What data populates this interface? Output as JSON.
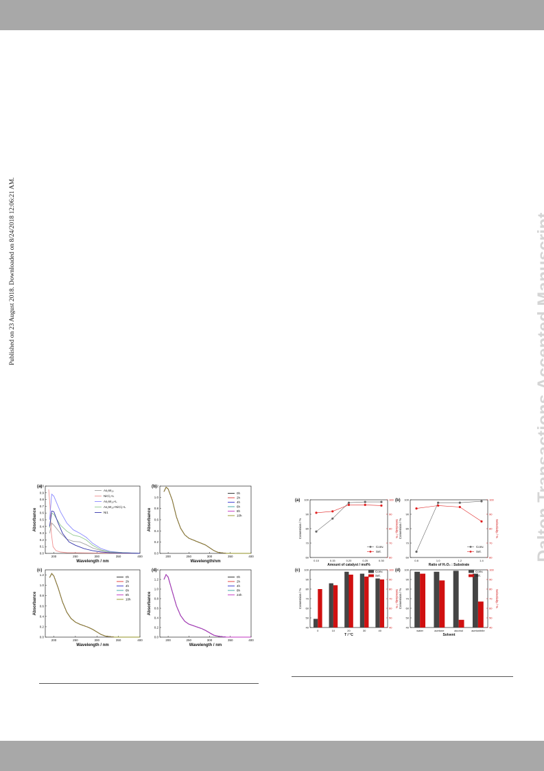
{
  "side_note": "Published on 23 August 2018. Downloaded on 8/24/2018 12:06:21 AM.",
  "watermark": "Dalton Transactions Accepted Manuscript",
  "chart_data": [
    {
      "id": "left-a",
      "type": "line",
      "panel": "(a)",
      "xlabel": "Wavelength / nm",
      "ylabel": "Absorbance",
      "xlim": [
        180,
        400
      ],
      "ylim": [
        0,
        1.0
      ],
      "xticks": [
        200,
        250,
        300,
        350,
        400
      ],
      "yticks": [
        0.0,
        0.1,
        0.2,
        0.3,
        0.4,
        0.5,
        0.6,
        0.7,
        0.8,
        0.9,
        1.0
      ],
      "legend_position": "top-right",
      "series": [
        {
          "name": "As₂W₁₉",
          "color": "#a0a0a0",
          "x": [
            190,
            195,
            200,
            215,
            230,
            245,
            260,
            275,
            290,
            310,
            330,
            360,
            400
          ],
          "y": [
            0.3,
            0.45,
            0.42,
            0.3,
            0.21,
            0.18,
            0.17,
            0.13,
            0.08,
            0.04,
            0.02,
            0.01,
            0.0
          ]
        },
        {
          "name": "NiCl₂+L",
          "color": "#f09090",
          "x": [
            188,
            191,
            194,
            198,
            205,
            215,
            230,
            400
          ],
          "y": [
            0.95,
            0.7,
            0.3,
            0.1,
            0.04,
            0.02,
            0.01,
            0.0
          ]
        },
        {
          "name": "As₂W₁₉+L",
          "color": "#8888ff",
          "x": [
            190,
            195,
            200,
            215,
            230,
            245,
            260,
            275,
            290,
            310,
            330,
            360,
            400
          ],
          "y": [
            0.5,
            0.88,
            0.85,
            0.62,
            0.45,
            0.35,
            0.3,
            0.24,
            0.15,
            0.07,
            0.03,
            0.01,
            0.0
          ]
        },
        {
          "name": "As₂W₁₉+NiCl₂+L",
          "color": "#90c890",
          "x": [
            190,
            195,
            200,
            215,
            230,
            245,
            260,
            275,
            290,
            310,
            330,
            360,
            400
          ],
          "y": [
            0.38,
            0.6,
            0.58,
            0.42,
            0.33,
            0.27,
            0.25,
            0.2,
            0.12,
            0.05,
            0.02,
            0.01,
            0.0
          ]
        },
        {
          "name": "Ni1",
          "color": "#3333aa",
          "x": [
            190,
            195,
            200,
            210,
            220,
            235,
            250,
            270,
            290,
            310,
            330,
            400
          ],
          "y": [
            0.4,
            0.63,
            0.62,
            0.45,
            0.3,
            0.17,
            0.12,
            0.07,
            0.04,
            0.02,
            0.01,
            0.0
          ]
        }
      ]
    },
    {
      "id": "left-b",
      "type": "line",
      "panel": "(b)",
      "xlabel": "Wavelength/nm",
      "ylabel": "Absorbance",
      "xlim": [
        180,
        400
      ],
      "ylim": [
        0,
        1.2
      ],
      "xticks": [
        200,
        250,
        300,
        350,
        400
      ],
      "yticks": [
        0.0,
        0.2,
        0.4,
        0.6,
        0.8,
        1.0,
        1.2
      ],
      "legend_position": "right",
      "series": [
        {
          "name": "0h",
          "color": "#222222"
        },
        {
          "name": "2h",
          "color": "#e03030"
        },
        {
          "name": "4h",
          "color": "#3030d0"
        },
        {
          "name": "6h",
          "color": "#30a0a0"
        },
        {
          "name": "8h",
          "color": "#c030c0"
        },
        {
          "name": "10h",
          "color": "#909020"
        }
      ],
      "x": [
        190,
        195,
        200,
        210,
        220,
        230,
        240,
        250,
        260,
        270,
        280,
        290,
        300,
        310,
        320,
        330,
        340,
        350,
        400
      ],
      "y": [
        1.1,
        1.18,
        1.15,
        0.95,
        0.65,
        0.45,
        0.33,
        0.27,
        0.24,
        0.21,
        0.18,
        0.15,
        0.1,
        0.05,
        0.02,
        0.01,
        0.0,
        0.0,
        0.0
      ]
    },
    {
      "id": "left-c",
      "type": "line",
      "panel": "(c)",
      "xlabel": "Wavelength / nm",
      "ylabel": "Absorbance",
      "xlim": [
        180,
        400
      ],
      "ylim": [
        0,
        1.3
      ],
      "xticks": [
        200,
        250,
        300,
        350,
        400
      ],
      "yticks": [
        0.0,
        0.2,
        0.4,
        0.6,
        0.8,
        1.0,
        1.2
      ],
      "legend_position": "right",
      "series": [
        {
          "name": "0h",
          "color": "#222222"
        },
        {
          "name": "2h",
          "color": "#e03030"
        },
        {
          "name": "4h",
          "color": "#3030d0"
        },
        {
          "name": "6h",
          "color": "#30a0a0"
        },
        {
          "name": "8h",
          "color": "#c030c0"
        },
        {
          "name": "10h",
          "color": "#909020"
        }
      ],
      "x": [
        190,
        195,
        200,
        210,
        220,
        230,
        240,
        250,
        260,
        270,
        280,
        290,
        300,
        310,
        320,
        330,
        340,
        400
      ],
      "y": [
        1.15,
        1.23,
        1.18,
        0.95,
        0.68,
        0.48,
        0.36,
        0.29,
        0.25,
        0.22,
        0.19,
        0.15,
        0.1,
        0.05,
        0.02,
        0.01,
        0.0,
        0.0
      ]
    },
    {
      "id": "left-d",
      "type": "line",
      "panel": "(d)",
      "xlabel": "Wavelength / nm",
      "ylabel": "Absorbance",
      "xlim": [
        180,
        400
      ],
      "ylim": [
        0,
        1.4
      ],
      "xticks": [
        200,
        250,
        300,
        350,
        400
      ],
      "yticks": [
        0.0,
        0.2,
        0.4,
        0.6,
        0.8,
        1.0,
        1.2,
        1.4
      ],
      "legend_position": "right",
      "series": [
        {
          "name": "0h",
          "color": "#222222"
        },
        {
          "name": "2h",
          "color": "#e03030"
        },
        {
          "name": "4h",
          "color": "#3030d0"
        },
        {
          "name": "8h",
          "color": "#30a0a0"
        },
        {
          "name": "24h",
          "color": "#c030c0"
        }
      ],
      "x": [
        190,
        195,
        200,
        210,
        220,
        230,
        240,
        250,
        260,
        270,
        280,
        290,
        300,
        310,
        320,
        330,
        340,
        400
      ],
      "y": [
        1.2,
        1.3,
        1.25,
        0.95,
        0.65,
        0.45,
        0.33,
        0.27,
        0.24,
        0.21,
        0.18,
        0.14,
        0.09,
        0.04,
        0.02,
        0.01,
        0.0,
        0.0
      ]
    },
    {
      "id": "right-a",
      "type": "line",
      "panel": "(a)",
      "xlabel": "Amount of catalyst / mol%",
      "ylabel": "Conversion / %",
      "ylabel_right": "Selectivity / %",
      "categories": [
        0.1,
        0.15,
        0.2,
        0.25,
        0.3
      ],
      "ylim": [
        60,
        100
      ],
      "ylim_right": [
        60,
        100
      ],
      "yticks": [
        60,
        70,
        80,
        90,
        100
      ],
      "legend_position": "bottom-right",
      "series": [
        {
          "name": "Conv.",
          "color": "#666666",
          "values": [
            78,
            87,
            98,
            98.5,
            98.5
          ]
        },
        {
          "name": "Sel.",
          "color": "#e02020",
          "values": [
            91,
            92,
            96.5,
            96.5,
            96
          ]
        }
      ]
    },
    {
      "id": "right-b",
      "type": "line",
      "panel": "(b)",
      "xlabel": "Ratio of H₂O₂ : Substrate",
      "ylabel": "Conversion / %",
      "ylabel_right": "Selectivity / %",
      "categories": [
        0.8,
        1.0,
        1.2,
        1.4
      ],
      "category_labels": [
        "0.8",
        "1.0",
        "1.2",
        "1.4"
      ],
      "ylim": [
        60,
        100
      ],
      "ylim_right": [
        60,
        100
      ],
      "yticks": [
        60,
        70,
        80,
        90,
        100
      ],
      "legend_position": "bottom-right",
      "series": [
        {
          "name": "Conv.",
          "color": "#666666",
          "values": [
            64,
            98,
            98,
            99
          ]
        },
        {
          "name": "Sel.",
          "color": "#e02020",
          "values": [
            94,
            96,
            95,
            85
          ]
        }
      ]
    },
    {
      "id": "right-c",
      "type": "bar",
      "panel": "(c)",
      "xlabel": "T / °C",
      "ylabel": "Conversion / %",
      "ylabel_right": "Selectivity / %",
      "categories": [
        "0",
        "10",
        "20",
        "30",
        "40"
      ],
      "ylim": [
        40,
        100
      ],
      "ylim_right": [
        40,
        100
      ],
      "yticks": [
        40,
        50,
        60,
        70,
        80,
        90,
        100
      ],
      "legend_position": "top-right",
      "series": [
        {
          "name": "Conv.",
          "color": "#444444",
          "values": [
            49,
            86,
            98,
            96,
            91
          ]
        },
        {
          "name": "Sel.",
          "color": "#d01010",
          "values": [
            80,
            84,
            95,
            93,
            90
          ]
        }
      ]
    },
    {
      "id": "right-d",
      "type": "bar",
      "panel": "(d)",
      "xlabel": "Solvent",
      "ylabel": "Conversion / %",
      "ylabel_right": "Selectivity / %",
      "categories": [
        "water",
        "acetone",
        "alcohol",
        "acetonitrile"
      ],
      "ylim": [
        40,
        100
      ],
      "ylim_right": [
        40,
        100
      ],
      "yticks": [
        40,
        50,
        60,
        70,
        80,
        90,
        100
      ],
      "legend_position": "top-right",
      "series": [
        {
          "name": "Conv.",
          "color": "#444444",
          "values": [
            98,
            98,
            99,
            96
          ]
        },
        {
          "name": "Sel.",
          "color": "#d01010",
          "values": [
            96,
            89,
            48,
            67
          ]
        }
      ]
    }
  ]
}
